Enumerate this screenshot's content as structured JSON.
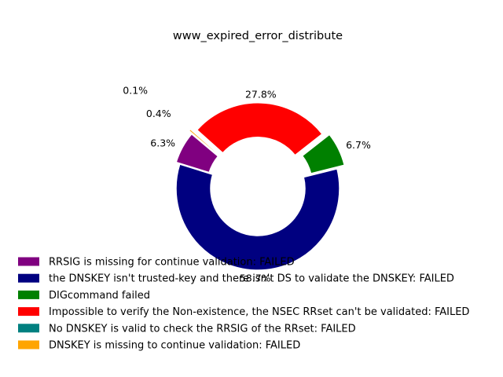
{
  "chart_data": {
    "type": "pie",
    "title": "www_expired_error_distribute",
    "series": [
      {
        "name": "RRSIG is missing for continue validation: FAILED",
        "value": 6.3,
        "label": "6.3%",
        "color": "#800080"
      },
      {
        "name": "the DNSKEY isn't trusted-key and there isn't DS to validate the DNSKEY: FAILED",
        "value": 58.7,
        "label": "58.7%",
        "color": "#000080"
      },
      {
        "name": "DIGcommand failed",
        "value": 6.7,
        "label": "6.7%",
        "color": "#008000"
      },
      {
        "name": "Impossible to verify the Non-existence, the NSEC RRset can't be validated: FAILED",
        "value": 27.8,
        "label": "27.8%",
        "color": "#ff0000"
      },
      {
        "name": "No DNSKEY is valid to check the RRSIG of the RRset: FAILED",
        "value": 0.1,
        "label": "0.1%",
        "color": "#008080"
      },
      {
        "name": "DNSKEY is missing to continue validation: FAILED",
        "value": 0.4,
        "label": "0.4%",
        "color": "#ffa500"
      }
    ],
    "donut": true,
    "legend_position": "bottom-left"
  }
}
